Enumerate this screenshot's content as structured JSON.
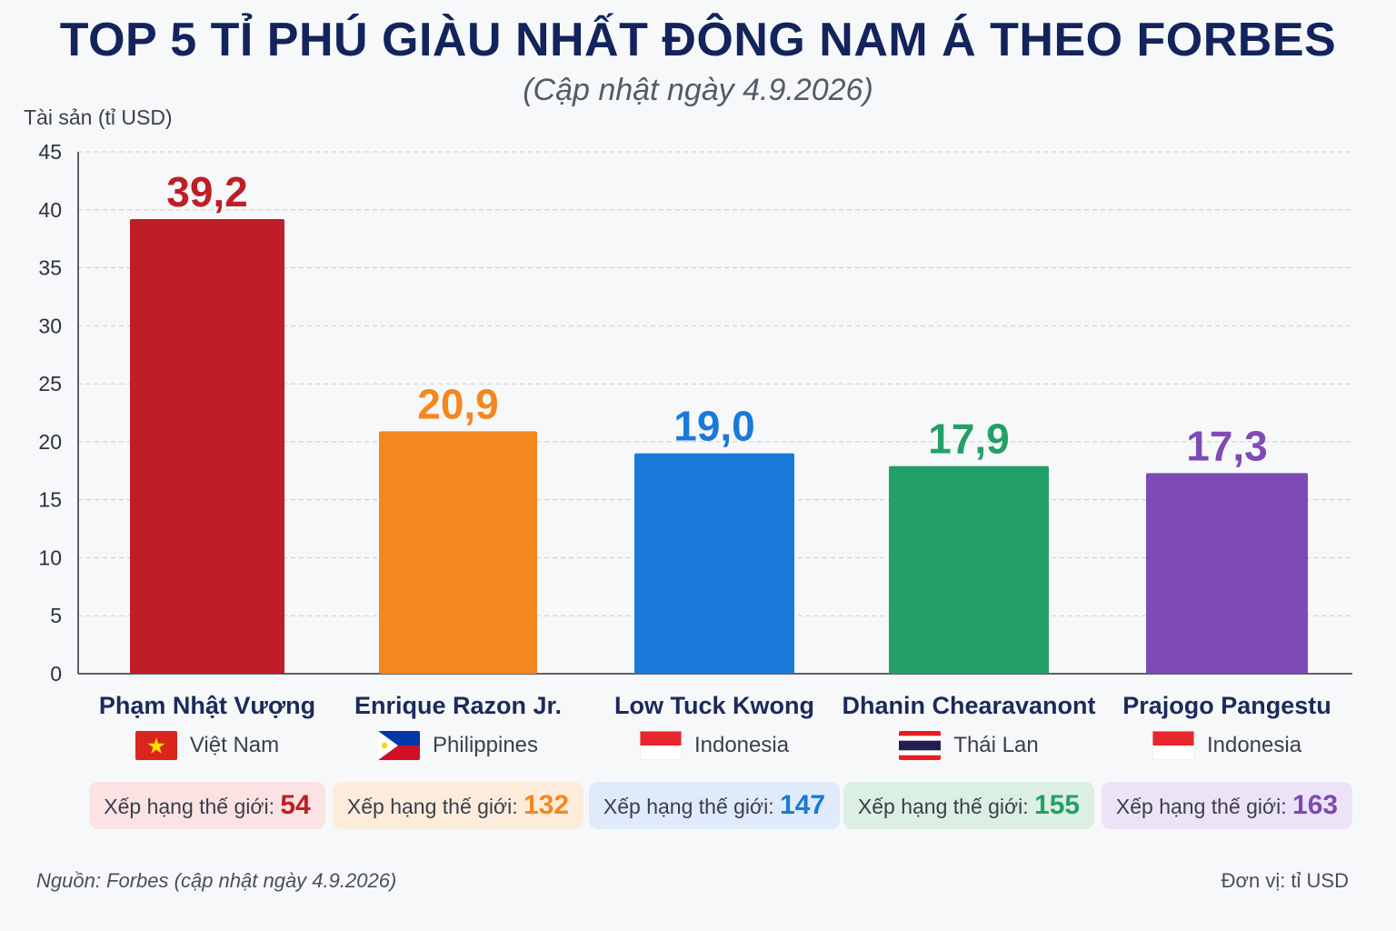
{
  "header": {
    "title": "TOP 5 TỈ PHÚ GIÀU NHẤT ĐÔNG NAM Á THEO FORBES",
    "subtitle": "(Cập nhật ngày 4.9.2026)"
  },
  "footer": {
    "source": "Nguồn: Forbes (cập nhật ngày 4.9.2026)",
    "unit": "Đơn vị: tỉ USD"
  },
  "rank_label": "Xếp hạng thế giới:",
  "chart_data": {
    "type": "bar",
    "title": "TOP 5 TỈ PHÚ GIÀU NHẤT ĐÔNG NAM Á THEO FORBES",
    "ylabel": "Tài sản (tỉ USD)",
    "xlabel": "",
    "ylim": [
      0,
      45
    ],
    "yticks": [
      0,
      5,
      10,
      15,
      20,
      25,
      30,
      35,
      40,
      45
    ],
    "grid": true,
    "categories": [
      "Phạm Nhật Vượng",
      "Enrique Razon Jr.",
      "Low Tuck Kwong",
      "Dhanin Chearavanont",
      "Prajogo Pangestu"
    ],
    "values": [
      39.2,
      20.9,
      19.0,
      17.9,
      17.3
    ],
    "value_labels": [
      "39,2",
      "20,9",
      "19,0",
      "17,9",
      "17,3"
    ],
    "countries": [
      "Việt Nam",
      "Philippines",
      "Indonesia",
      "Thái Lan",
      "Indonesia"
    ],
    "flags": [
      "vietnam-flag-icon",
      "philippines-flag-icon",
      "indonesia-flag-icon",
      "thailand-flag-icon",
      "indonesia-flag-icon"
    ],
    "world_ranks": [
      "54",
      "132",
      "147",
      "155",
      "163"
    ],
    "colors": [
      "#be1e26",
      "#f5871f",
      "#1a7ad9",
      "#23a068",
      "#7e4ab5"
    ],
    "badge_colors": [
      "#fbe3e3",
      "#fdecdc",
      "#dfeafa",
      "#dcefe4",
      "#ece3f7"
    ]
  }
}
